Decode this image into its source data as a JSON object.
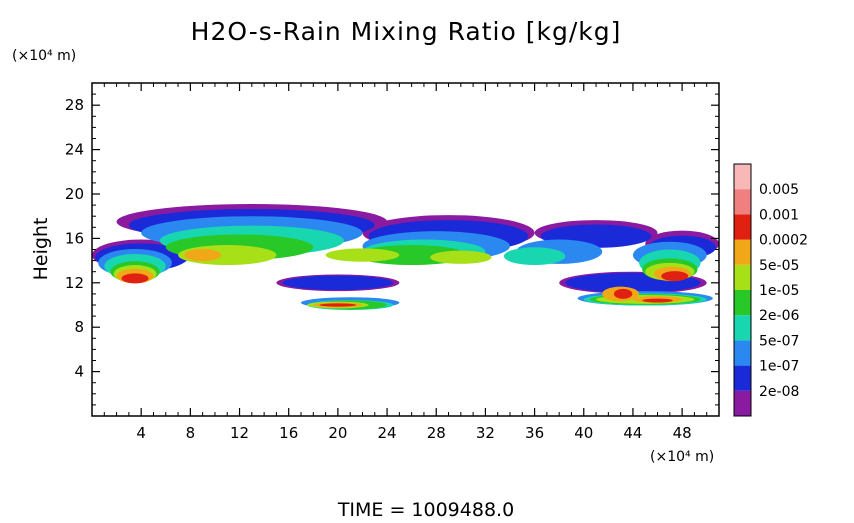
{
  "chart_data": {
    "type": "heatmap",
    "title": "H2O-s-Rain Mixing Ratio [kg/kg]",
    "ylabel": "Height",
    "y_unit": "(×10⁴ m)",
    "x_unit": "(×10⁴ m)",
    "xlim": [
      0,
      51
    ],
    "ylim": [
      0,
      30
    ],
    "x_ticks": [
      4,
      8,
      12,
      16,
      20,
      24,
      28,
      32,
      36,
      40,
      44,
      48
    ],
    "y_ticks": [
      4,
      8,
      12,
      16,
      20,
      24,
      28
    ],
    "grid": false,
    "footer": "TIME =  1009488.0",
    "colorbar": {
      "placement": "right",
      "levels": [
        {
          "label": "2e-08",
          "color": "#8a1aa0"
        },
        {
          "label": "1e-07",
          "color": "#1a2ad8"
        },
        {
          "label": "5e-07",
          "color": "#2a88f0"
        },
        {
          "label": "2e-06",
          "color": "#18d6b0"
        },
        {
          "label": "1e-05",
          "color": "#28c828"
        },
        {
          "label": "5e-05",
          "color": "#a8e018"
        },
        {
          "label": "0.0002",
          "color": "#f0a818"
        },
        {
          "label": "0.001",
          "color": "#e02010"
        },
        {
          "label": "0.005",
          "color": "#f08080"
        }
      ],
      "top_color": "#f8b8b8"
    },
    "layers": [
      {
        "level": 1,
        "color": "#8a1aa0",
        "blobs": [
          [
            13,
            17.5,
            22,
            3.2
          ],
          [
            29,
            16.5,
            14,
            3.2
          ],
          [
            41,
            16.5,
            10,
            2.3
          ],
          [
            48,
            15.5,
            6,
            2.4
          ],
          [
            4,
            14.5,
            8,
            2.8
          ],
          [
            20,
            12,
            10,
            1.5
          ],
          [
            44,
            12,
            12,
            2
          ]
        ]
      },
      {
        "level": 2,
        "color": "#1a2ad8",
        "blobs": [
          [
            13,
            17.2,
            20,
            2.9
          ],
          [
            29,
            16.2,
            13,
            2.9
          ],
          [
            41,
            16.2,
            9,
            2.1
          ],
          [
            48,
            15.2,
            5.5,
            2.1
          ],
          [
            4,
            14.3,
            7.5,
            2.5
          ],
          [
            20,
            12,
            9,
            1.3
          ],
          [
            44,
            12,
            11,
            1.8
          ]
        ]
      },
      {
        "level": 3,
        "color": "#2a88f0",
        "blobs": [
          [
            13,
            16.5,
            18,
            3
          ],
          [
            28,
            15.3,
            12,
            2.7
          ],
          [
            38,
            14.8,
            7,
            2.2
          ],
          [
            47,
            14.5,
            6,
            2.4
          ],
          [
            3.5,
            13.8,
            6,
            2.5
          ],
          [
            21,
            10.2,
            8,
            1
          ],
          [
            45,
            10.6,
            11,
            1.3
          ]
        ]
      },
      {
        "level": 4,
        "color": "#18d6b0",
        "blobs": [
          [
            13,
            15.8,
            15,
            2.7
          ],
          [
            27,
            14.8,
            10,
            2.2
          ],
          [
            36,
            14.4,
            5,
            1.6
          ],
          [
            47,
            13.8,
            5,
            2.4
          ],
          [
            3.5,
            13.5,
            5,
            2.2
          ],
          [
            21,
            10,
            7,
            0.9
          ],
          [
            45,
            10.5,
            10,
            1.1
          ]
        ]
      },
      {
        "level": 5,
        "color": "#28c828",
        "blobs": [
          [
            12,
            15.2,
            12,
            2.3
          ],
          [
            26,
            14.5,
            9,
            1.8
          ],
          [
            47,
            13.2,
            4.5,
            2
          ],
          [
            3.5,
            13,
            4,
            1.9
          ],
          [
            21,
            10,
            6,
            0.8
          ],
          [
            45,
            10.5,
            9,
            0.95
          ]
        ]
      },
      {
        "level": 6,
        "color": "#a8e018",
        "blobs": [
          [
            11,
            14.5,
            8,
            1.8
          ],
          [
            22,
            14.5,
            6,
            1.2
          ],
          [
            30,
            14.3,
            5,
            1.2
          ],
          [
            47,
            13,
            4,
            1.6
          ],
          [
            3.5,
            12.8,
            3.5,
            1.6
          ],
          [
            20,
            10,
            5,
            0.6
          ],
          [
            45,
            10.5,
            8,
            0.8
          ]
        ]
      },
      {
        "level": 7,
        "color": "#f0a818",
        "blobs": [
          [
            3.5,
            12.6,
            3,
            1.3
          ],
          [
            9,
            14.5,
            3,
            1.1
          ],
          [
            47.2,
            12.8,
            3,
            1.3
          ],
          [
            20,
            10,
            4,
            0.45
          ],
          [
            43,
            11,
            3,
            1.3
          ],
          [
            46,
            10.5,
            4,
            0.6
          ]
        ]
      },
      {
        "level": 8,
        "color": "#e02010",
        "blobs": [
          [
            3.5,
            12.4,
            2.2,
            0.9
          ],
          [
            47.4,
            12.6,
            2.2,
            0.9
          ],
          [
            20,
            10,
            3,
            0.3
          ],
          [
            43.2,
            11,
            1.5,
            0.9
          ],
          [
            46,
            10.4,
            2.5,
            0.35
          ]
        ]
      }
    ]
  }
}
